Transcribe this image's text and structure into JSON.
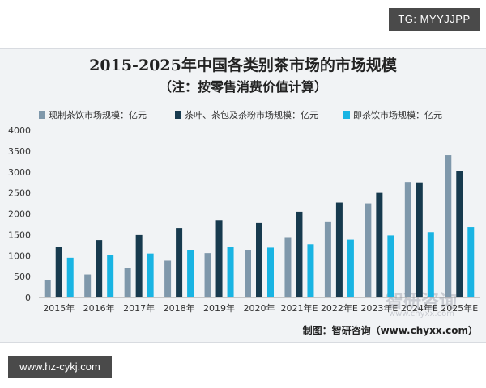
{
  "tags": {
    "top": "TG: MYYJJPP",
    "bottom": "www.hz-cykj.com"
  },
  "colors": {
    "panel_bg": "#f1f3f5",
    "series1": "#7f98ab",
    "series2": "#173a4e",
    "series3": "#19b4e3"
  },
  "watermark": {
    "text": "智研咨询",
    "url": "www.chyxx.com"
  },
  "source": "制图：智研咨询（www.chyxx.com）",
  "chart_data": {
    "type": "bar",
    "title": "2015-2025年中国各类别茶市场的市场规模",
    "subtitle": "（注：按零售消费价值计算）",
    "xlabel": "",
    "ylabel": "",
    "ylim": [
      0,
      4000
    ],
    "yticks": [
      0,
      500,
      1000,
      1500,
      2000,
      2500,
      3000,
      3500,
      4000
    ],
    "grid": false,
    "legend_position": "top",
    "categories": [
      "2015年",
      "2016年",
      "2017年",
      "2018年",
      "2019年",
      "2020年",
      "2021年E",
      "2022年E",
      "2023年E",
      "2024年E",
      "2025年E"
    ],
    "series": [
      {
        "name": "现制茶饮市场规模：亿元",
        "values": [
          420,
          550,
          700,
          880,
          1060,
          1140,
          1440,
          1800,
          2250,
          2760,
          3400
        ]
      },
      {
        "name": "茶叶、茶包及茶粉市场规模：亿元",
        "values": [
          1200,
          1370,
          1490,
          1660,
          1850,
          1780,
          2050,
          2270,
          2500,
          2750,
          3020
        ]
      },
      {
        "name": "即茶饮市场规模：亿元",
        "values": [
          950,
          1020,
          1050,
          1140,
          1210,
          1190,
          1270,
          1380,
          1480,
          1560,
          1680
        ]
      }
    ]
  }
}
